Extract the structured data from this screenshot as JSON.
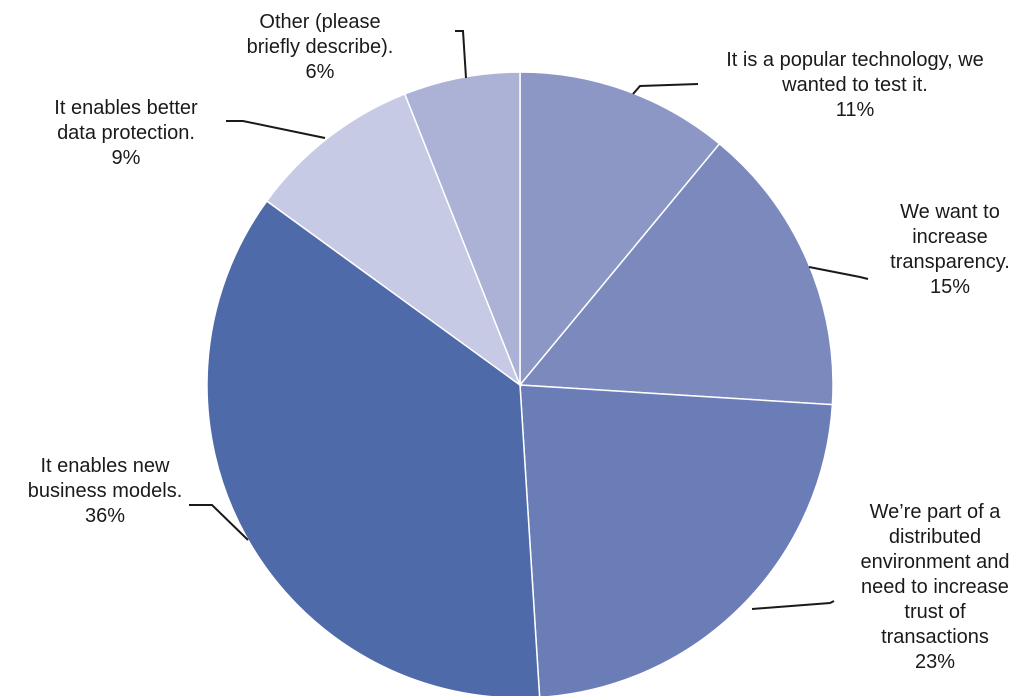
{
  "chart_data": {
    "type": "pie",
    "title": "",
    "start_angle_deg": 0,
    "direction": "clockwise",
    "slices": [
      {
        "label_lines": [
          "It is a popular technology, we",
          "wanted to test it."
        ],
        "value": 11,
        "value_label": "11%",
        "color": "#8c97c6"
      },
      {
        "label_lines": [
          "We want to",
          "increase",
          "transparency."
        ],
        "value": 15,
        "value_label": "15%",
        "color": "#7c89bd"
      },
      {
        "label_lines": [
          "We’re part of a",
          "distributed",
          "environment and",
          "need to increase",
          "trust of",
          "transactions"
        ],
        "value": 23,
        "value_label": "23%",
        "color": "#6b7db7"
      },
      {
        "label_lines": [
          "It enables new",
          "business models."
        ],
        "value": 36,
        "value_label": "36%",
        "color": "#4f6aa8"
      },
      {
        "label_lines": [
          "It enables better",
          "data protection."
        ],
        "value": 9,
        "value_label": "9%",
        "color": "#c6cae4"
      },
      {
        "label_lines": [
          "Other (please",
          "briefly describe)."
        ],
        "value": 6,
        "value_label": "6%",
        "color": "#abb2d6"
      }
    ]
  }
}
